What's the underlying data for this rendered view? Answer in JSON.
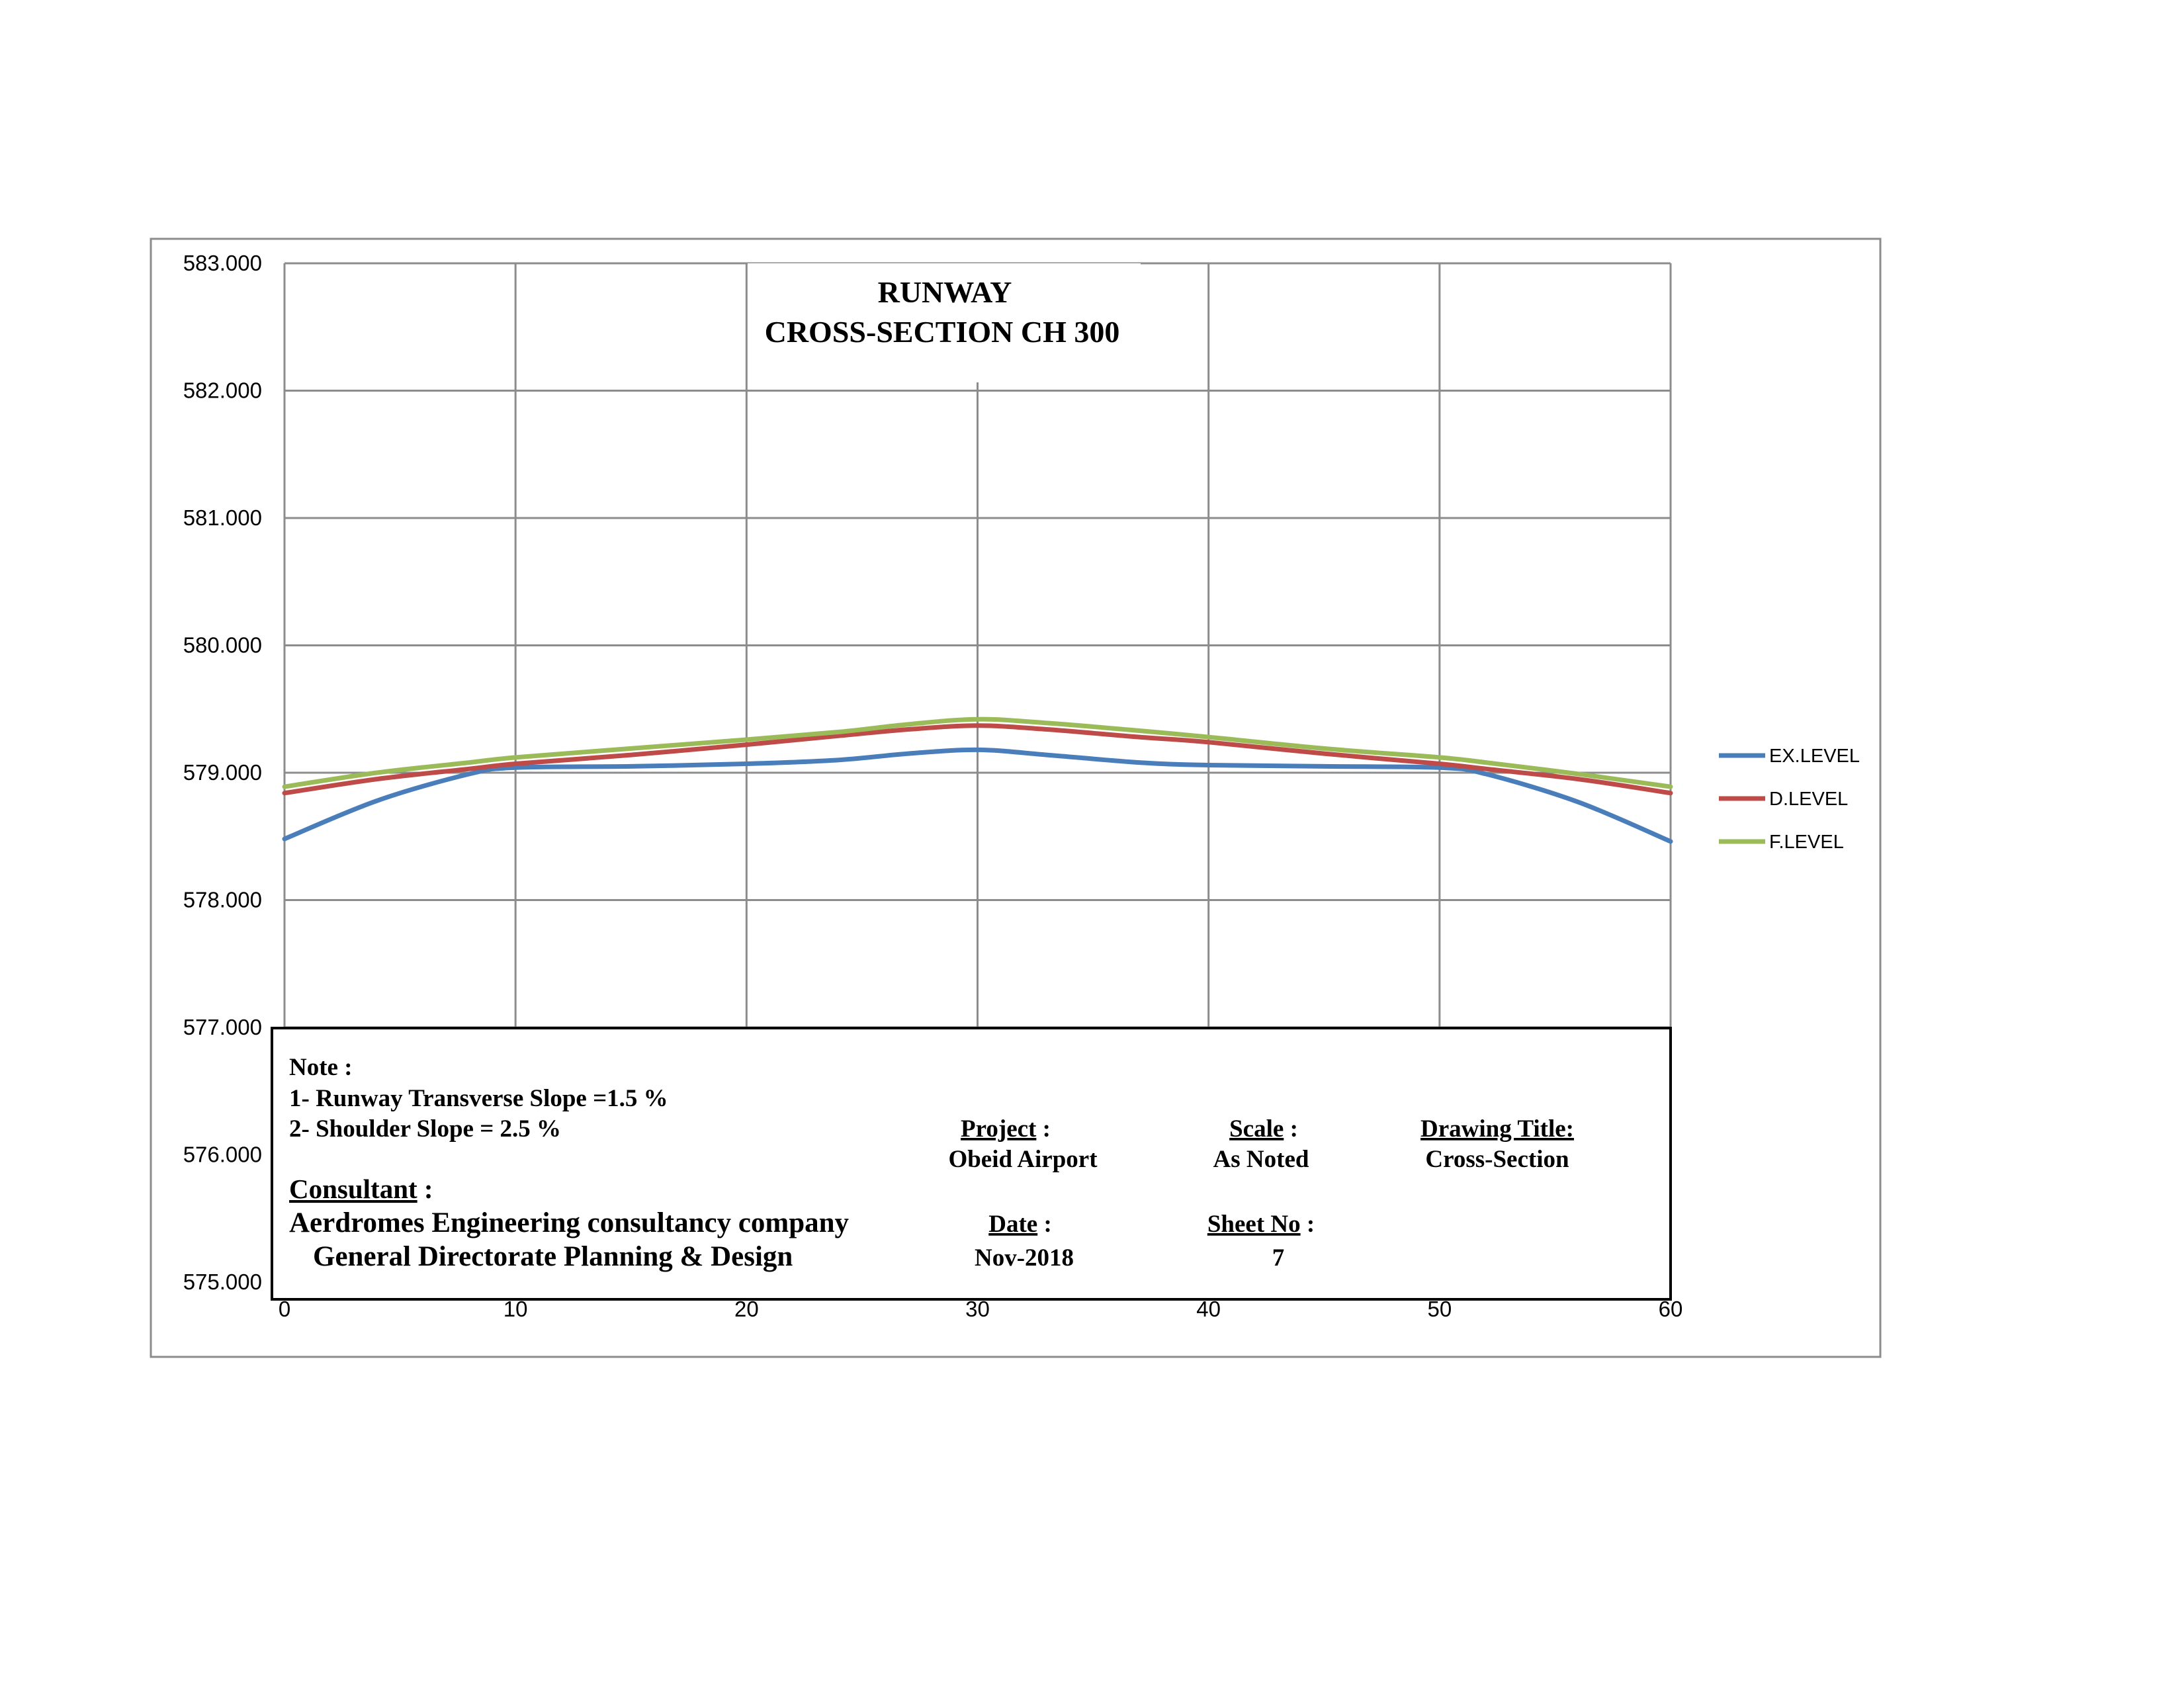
{
  "chart_data": {
    "type": "line",
    "title_line1": "RUNWAY",
    "title_line2": "CROSS-SECTION CH 300",
    "ylim": [
      575,
      583
    ],
    "xlim": [
      0,
      60
    ],
    "y_ticks": [
      "575.000",
      "576.000",
      "577.000",
      "578.000",
      "579.000",
      "580.000",
      "581.000",
      "582.000",
      "583.000"
    ],
    "x_ticks": [
      "0",
      "10",
      "20",
      "30",
      "40",
      "50",
      "60"
    ],
    "grid": true,
    "legend_position": "right",
    "x": [
      0,
      4,
      8,
      10,
      15,
      20,
      24,
      27,
      30,
      33,
      37,
      40,
      45,
      50,
      52,
      56,
      60
    ],
    "series": [
      {
        "name": "EX.LEVEL",
        "color": "#4a7ebb",
        "values": [
          578.48,
          578.78,
          578.99,
          579.04,
          579.05,
          579.07,
          579.1,
          579.15,
          579.18,
          579.14,
          579.08,
          579.06,
          579.05,
          579.04,
          578.99,
          578.77,
          578.46
        ]
      },
      {
        "name": "D.LEVEL",
        "color": "#be4b48",
        "values": [
          578.84,
          578.95,
          579.03,
          579.07,
          579.14,
          579.22,
          579.29,
          579.34,
          579.37,
          579.34,
          579.28,
          579.24,
          579.15,
          579.07,
          579.03,
          578.95,
          578.84
        ]
      },
      {
        "name": "F.LEVEL",
        "color": "#9bbb59",
        "values": [
          578.89,
          579.0,
          579.08,
          579.12,
          579.19,
          579.26,
          579.32,
          579.38,
          579.42,
          579.39,
          579.33,
          579.28,
          579.19,
          579.12,
          579.08,
          578.99,
          578.89
        ]
      }
    ]
  },
  "title_block": {
    "note_heading": "Note :",
    "note_1": "1- Runway Transverse Slope =1.5 %",
    "note_2": "2- Shoulder Slope = 2.5 %",
    "consultant_label": "Consultant",
    "consultant_colon": " :",
    "consultant_line1": "Aerdromes Engineering consultancy company",
    "consultant_line2": "General Directorate Planning & Design",
    "project_label": "Project",
    "project_colon": " :",
    "project_value": "Obeid Airport",
    "scale_label": "Scale",
    "scale_colon": " :",
    "scale_value": "As Noted",
    "drawing_title_label": "Drawing Title:",
    "drawing_title_value": "Cross-Section",
    "date_label": "Date",
    "date_colon": " :",
    "date_value": "Nov-2018",
    "sheet_label": "Sheet No",
    "sheet_colon": "  :",
    "sheet_value": "7"
  }
}
